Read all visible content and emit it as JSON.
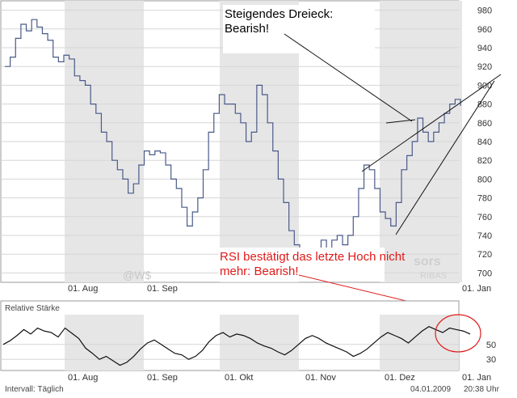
{
  "chart_data": [
    {
      "type": "line",
      "ylim": [
        690,
        990
      ],
      "yticks": [
        700,
        720,
        740,
        760,
        780,
        800,
        820,
        840,
        860,
        880,
        900,
        920,
        940,
        960,
        980
      ],
      "xticks": [
        "01. Aug",
        "01. Sep",
        "01. Jan"
      ],
      "series_color": "#4a5a8a",
      "series": [
        {
          "x": 0,
          "y": 920
        },
        {
          "x": 3,
          "y": 930
        },
        {
          "x": 6,
          "y": 950
        },
        {
          "x": 9,
          "y": 965
        },
        {
          "x": 12,
          "y": 958
        },
        {
          "x": 15,
          "y": 970
        },
        {
          "x": 18,
          "y": 962
        },
        {
          "x": 21,
          "y": 955
        },
        {
          "x": 24,
          "y": 948
        },
        {
          "x": 27,
          "y": 930
        },
        {
          "x": 30,
          "y": 925
        },
        {
          "x": 33,
          "y": 932
        },
        {
          "x": 36,
          "y": 928
        },
        {
          "x": 39,
          "y": 910
        },
        {
          "x": 42,
          "y": 905
        },
        {
          "x": 45,
          "y": 900
        },
        {
          "x": 48,
          "y": 880
        },
        {
          "x": 51,
          "y": 870
        },
        {
          "x": 54,
          "y": 850
        },
        {
          "x": 57,
          "y": 840
        },
        {
          "x": 60,
          "y": 820
        },
        {
          "x": 63,
          "y": 810
        },
        {
          "x": 66,
          "y": 800
        },
        {
          "x": 69,
          "y": 785
        },
        {
          "x": 72,
          "y": 795
        },
        {
          "x": 75,
          "y": 815
        },
        {
          "x": 78,
          "y": 830
        },
        {
          "x": 81,
          "y": 826
        },
        {
          "x": 84,
          "y": 830
        },
        {
          "x": 87,
          "y": 828
        },
        {
          "x": 90,
          "y": 815
        },
        {
          "x": 93,
          "y": 800
        },
        {
          "x": 96,
          "y": 790
        },
        {
          "x": 99,
          "y": 770
        },
        {
          "x": 102,
          "y": 750
        },
        {
          "x": 105,
          "y": 765
        },
        {
          "x": 108,
          "y": 780
        },
        {
          "x": 111,
          "y": 810
        },
        {
          "x": 114,
          "y": 850
        },
        {
          "x": 117,
          "y": 870
        },
        {
          "x": 120,
          "y": 890
        },
        {
          "x": 123,
          "y": 880
        },
        {
          "x": 126,
          "y": 880
        },
        {
          "x": 129,
          "y": 870
        },
        {
          "x": 132,
          "y": 860
        },
        {
          "x": 135,
          "y": 840
        },
        {
          "x": 138,
          "y": 850
        },
        {
          "x": 141,
          "y": 900
        },
        {
          "x": 144,
          "y": 890
        },
        {
          "x": 147,
          "y": 860
        },
        {
          "x": 150,
          "y": 830
        },
        {
          "x": 153,
          "y": 800
        },
        {
          "x": 156,
          "y": 775
        },
        {
          "x": 159,
          "y": 745
        },
        {
          "x": 162,
          "y": 730
        },
        {
          "x": 165,
          "y": 720
        },
        {
          "x": 168,
          "y": 715
        },
        {
          "x": 171,
          "y": 700
        },
        {
          "x": 174,
          "y": 720
        },
        {
          "x": 177,
          "y": 735
        },
        {
          "x": 180,
          "y": 725
        },
        {
          "x": 183,
          "y": 735
        },
        {
          "x": 186,
          "y": 740
        },
        {
          "x": 189,
          "y": 730
        },
        {
          "x": 192,
          "y": 740
        },
        {
          "x": 195,
          "y": 760
        },
        {
          "x": 198,
          "y": 790
        },
        {
          "x": 201,
          "y": 815
        },
        {
          "x": 204,
          "y": 810
        },
        {
          "x": 207,
          "y": 790
        },
        {
          "x": 210,
          "y": 765
        },
        {
          "x": 213,
          "y": 758
        },
        {
          "x": 216,
          "y": 750
        },
        {
          "x": 219,
          "y": 775
        },
        {
          "x": 222,
          "y": 810
        },
        {
          "x": 225,
          "y": 825
        },
        {
          "x": 228,
          "y": 840
        },
        {
          "x": 231,
          "y": 865
        },
        {
          "x": 234,
          "y": 850
        },
        {
          "x": 237,
          "y": 840
        },
        {
          "x": 240,
          "y": 850
        },
        {
          "x": 243,
          "y": 860
        },
        {
          "x": 246,
          "y": 870
        },
        {
          "x": 249,
          "y": 880
        },
        {
          "x": 252,
          "y": 885
        },
        {
          "x": 255,
          "y": 878
        }
      ],
      "annotation_top": [
        "Steigendes Dreieck:",
        "Bearish!"
      ],
      "annotation_bottom": [
        "RSI bestätigt das letzte Hoch nicht",
        "mehr: Bearish!"
      ],
      "watermark": "@W$",
      "watermark_right": [
        "sors",
        "RIBAS"
      ]
    },
    {
      "type": "line",
      "title": "Relative Stärke",
      "ylim": [
        15,
        90
      ],
      "yticks": [
        30,
        50
      ],
      "xticks": [
        "01. Aug",
        "01. Sep",
        "01. Okt",
        "01. Nov",
        "01. Dez",
        "01. Jan"
      ],
      "values": [
        50,
        55,
        62,
        70,
        64,
        72,
        68,
        66,
        60,
        72,
        65,
        58,
        45,
        38,
        30,
        34,
        28,
        22,
        26,
        34,
        44,
        52,
        56,
        50,
        44,
        38,
        36,
        30,
        34,
        42,
        54,
        62,
        66,
        60,
        64,
        62,
        58,
        52,
        48,
        45,
        40,
        36,
        42,
        50,
        58,
        62,
        58,
        52,
        48,
        44,
        40,
        34,
        38,
        44,
        52,
        60,
        66,
        62,
        58,
        52,
        60,
        68,
        74,
        70,
        66,
        72,
        70,
        68,
        64
      ]
    }
  ],
  "footer": {
    "interval": "Intervall: Täglich",
    "date": "04.01.2009",
    "time": "20:38 Uhr"
  }
}
